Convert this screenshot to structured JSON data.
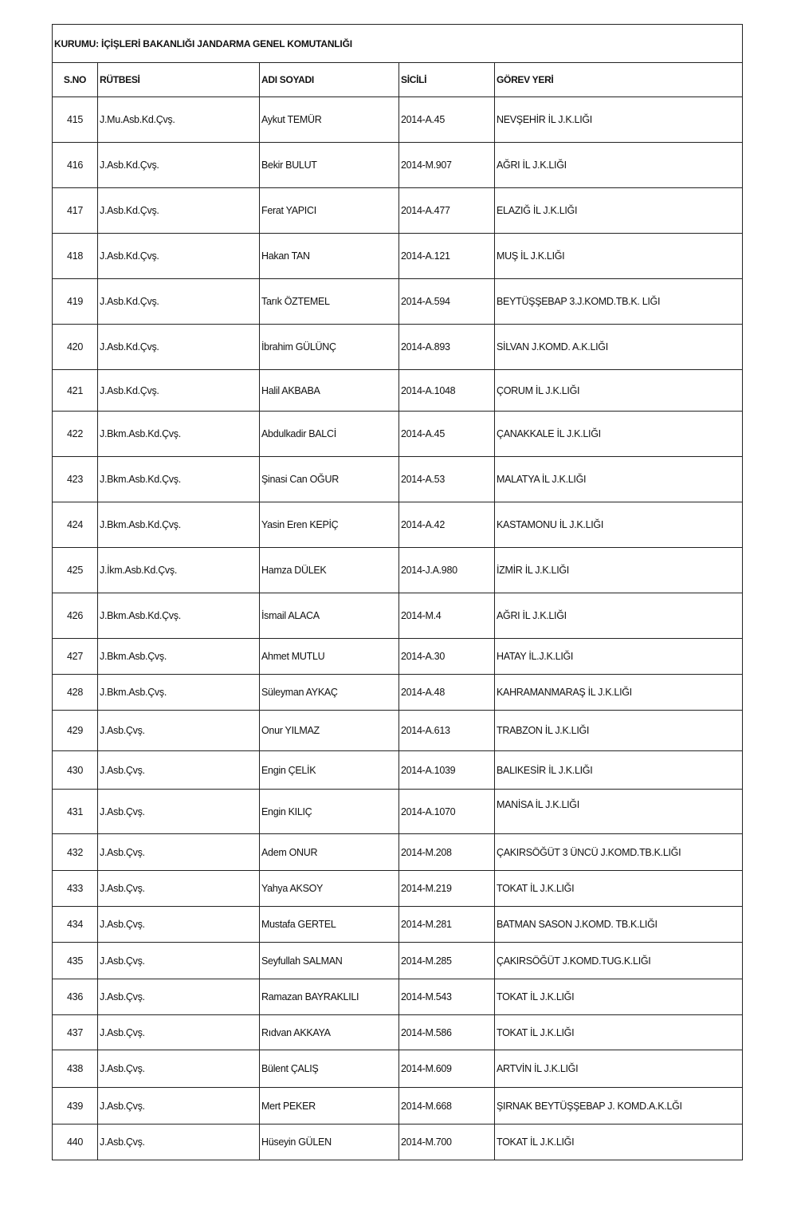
{
  "title": "KURUMU: İÇİŞLERİ BAKANLIĞI JANDARMA GENEL KOMUTANLIĞI",
  "columns": [
    "S.NO",
    "RÜTBESİ",
    "ADI SOYADI",
    "SİCİLİ",
    "GÖREV YERİ"
  ],
  "rows": [
    [
      "415",
      "J.Mu.Asb.Kd.Çvş.",
      "Aykut TEMÜR",
      "2014-A.45",
      "NEVŞEHİR İL J.K.LIĞI"
    ],
    [
      "416",
      "J.Asb.Kd.Çvş.",
      "Bekir BULUT",
      "2014-M.907",
      "AĞRI İL J.K.LIĞI"
    ],
    [
      "417",
      "J.Asb.Kd.Çvş.",
      "Ferat YAPICI",
      "2014-A.477",
      "ELAZIĞ İL J.K.LIĞI"
    ],
    [
      "418",
      "J.Asb.Kd.Çvş.",
      "Hakan TAN",
      "2014-A.121",
      "MUŞ İL J.K.LIĞI"
    ],
    [
      "419",
      "J.Asb.Kd.Çvş.",
      "Tarık ÖZTEMEL",
      "2014-A.594",
      "BEYTÜŞŞEBAP 3.J.KOMD.TB.K. LIĞI"
    ],
    [
      "420",
      "J.Asb.Kd.Çvş.",
      "İbrahim GÜLÜNÇ",
      "2014-A.893",
      "SİLVAN J.KOMD. A.K.LIĞI"
    ],
    [
      "421",
      "J.Asb.Kd.Çvş.",
      "Halil AKBABA",
      "2014-A.1048",
      "ÇORUM İL J.K.LIĞI"
    ],
    [
      "422",
      "J.Bkm.Asb.Kd.Çvş.",
      "Abdulkadir BALCİ",
      "2014-A.45",
      "ÇANAKKALE İL J.K.LIĞI"
    ],
    [
      "423",
      "J.Bkm.Asb.Kd.Çvş.",
      "Şinasi Can OĞUR",
      "2014-A.53",
      "MALATYA İL J.K.LIĞI"
    ],
    [
      "424",
      "J.Bkm.Asb.Kd.Çvş.",
      "Yasin Eren KEPİÇ",
      "2014-A.42",
      "KASTAMONU İL J.K.LIĞI"
    ],
    [
      "425",
      "J.İkm.Asb.Kd.Çvş.",
      "Hamza DÜLEK",
      "2014-J.A.980",
      "İZMİR İL J.K.LIĞI"
    ],
    [
      "426",
      "J.Bkm.Asb.Kd.Çvş.",
      "İsmail ALACA",
      "2014-M.4",
      "AĞRI İL J.K.LIĞI"
    ],
    [
      "427",
      "J.Bkm.Asb.Çvş.",
      "Ahmet MUTLU",
      "2014-A.30",
      "HATAY İL.J.K.LIĞI"
    ],
    [
      "428",
      "J.Bkm.Asb.Çvş.",
      "Süleyman AYKAÇ",
      "2014-A.48",
      "KAHRAMANMARAŞ İL J.K.LIĞI"
    ],
    [
      "429",
      "J.Asb.Çvş.",
      "Onur YILMAZ",
      "2014-A.613",
      "TRABZON İL J.K.LIĞI"
    ],
    [
      "430",
      "J.Asb.Çvş.",
      "Engin ÇELİK",
      "2014-A.1039",
      "BALIKESİR İL J.K.LIĞI"
    ],
    [
      "431",
      "J.Asb.Çvş.",
      "Engin KILIÇ",
      "2014-A.1070",
      "MANİSA İL J.K.LIĞI"
    ],
    [
      "432",
      "J.Asb.Çvş.",
      "Adem ONUR",
      "2014-M.208",
      "ÇAKIRSÖĞÜT 3 ÜNCÜ J.KOMD.TB.K.LIĞI"
    ],
    [
      "433",
      "J.Asb.Çvş.",
      "Yahya AKSOY",
      "2014-M.219",
      "TOKAT İL J.K.LIĞI"
    ],
    [
      "434",
      "J.Asb.Çvş.",
      "Mustafa GERTEL",
      "2014-M.281",
      "BATMAN SASON J.KOMD. TB.K.LIĞI"
    ],
    [
      "435",
      "J.Asb.Çvş.",
      "Seyfullah SALMAN",
      "2014-M.285",
      "ÇAKIRSÖĞÜT J.KOMD.TUG.K.LIĞI"
    ],
    [
      "436",
      "J.Asb.Çvş.",
      "Ramazan BAYRAKLILI",
      "2014-M.543",
      "TOKAT İL J.K.LIĞI"
    ],
    [
      "437",
      "J.Asb.Çvş.",
      "Rıdvan AKKAYA",
      "2014-M.586",
      "TOKAT İL J.K.LIĞI"
    ],
    [
      "438",
      "J.Asb.Çvş.",
      "Bülent ÇALIŞ",
      "2014-M.609",
      "ARTVİN İL J.K.LIĞI"
    ],
    [
      "439",
      "J.Asb.Çvş.",
      "Mert PEKER",
      "2014-M.668",
      "ŞIRNAK BEYTÜŞŞEBAP J. KOMD.A.K.LĞI"
    ],
    [
      "440",
      "J.Asb.Çvş.",
      "Hüseyin GÜLEN",
      "2014-M.700",
      "TOKAT İL J.K.LIĞI"
    ]
  ]
}
